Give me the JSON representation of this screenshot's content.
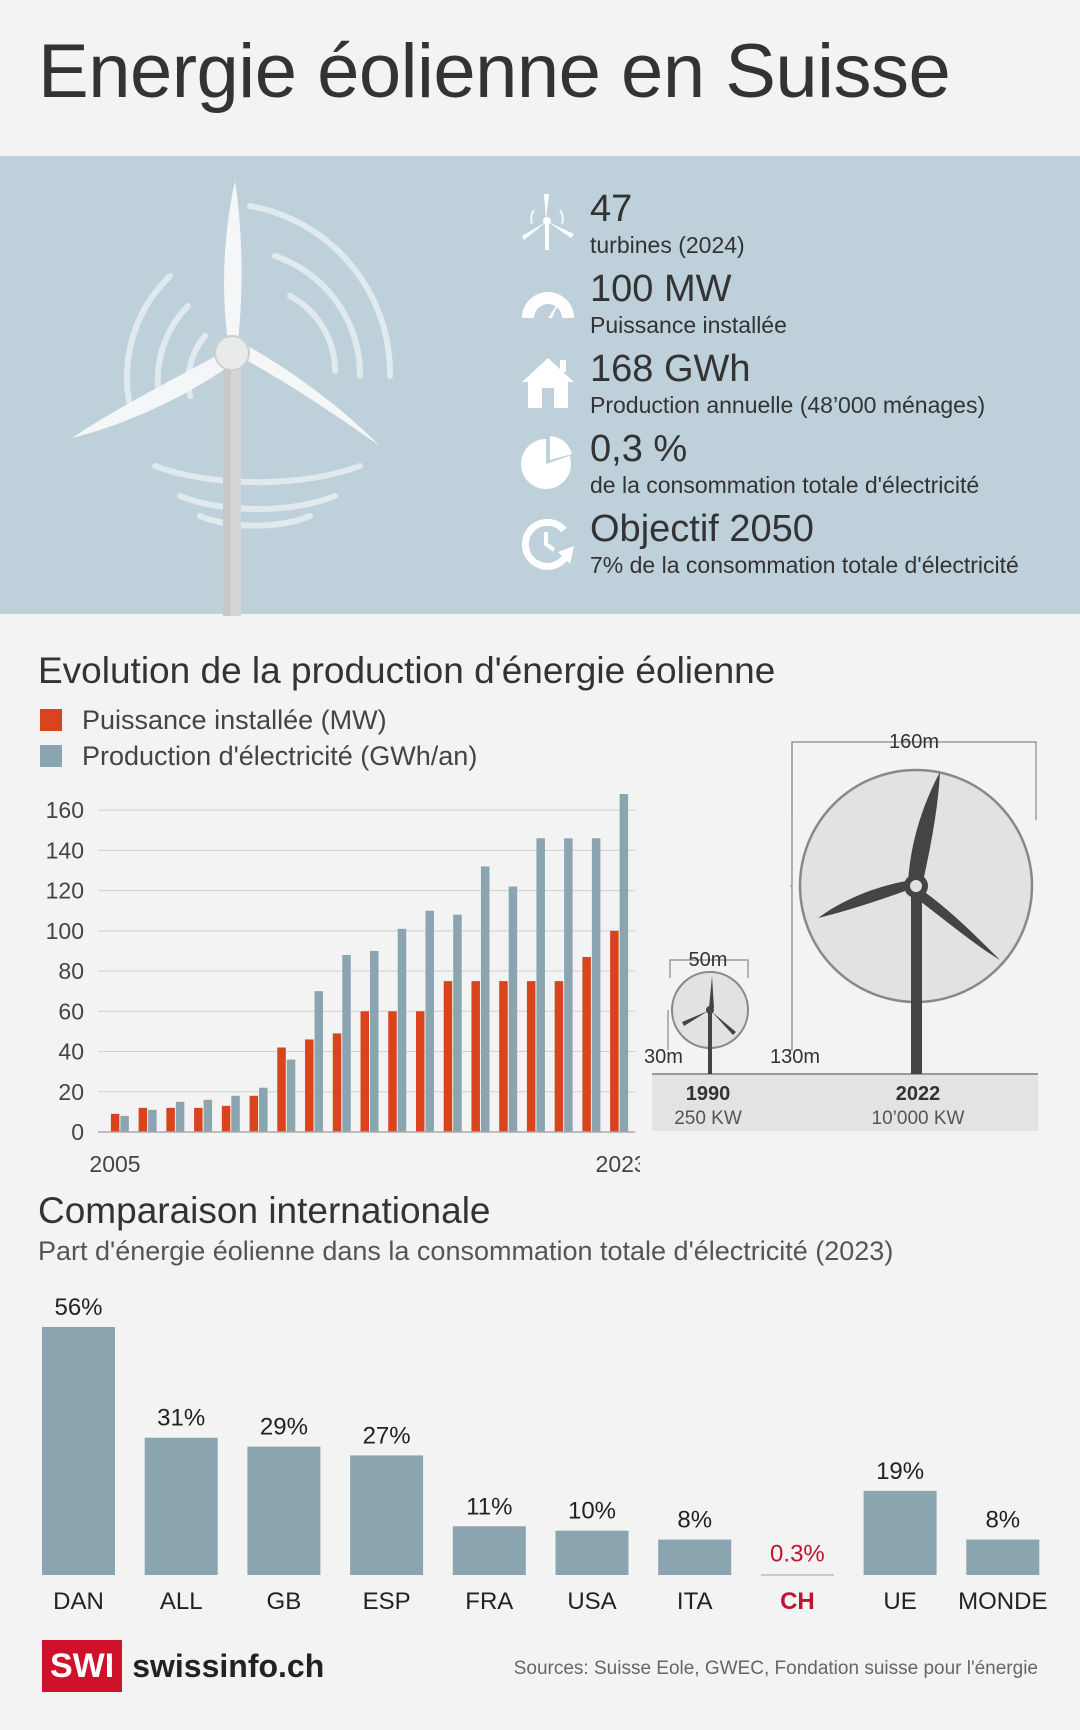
{
  "title": "Energie éolienne en Suisse",
  "stats": [
    {
      "icon": "wind-turbine-icon",
      "value": "47",
      "label": "turbines (2024)"
    },
    {
      "icon": "gauge-icon",
      "value": "100 MW",
      "label": "Puissance installée"
    },
    {
      "icon": "house-icon",
      "value": "168 GWh",
      "label": "Production annuelle (48’000 ménages)"
    },
    {
      "icon": "pie-icon",
      "value": "0,3 %",
      "label": "de la consommation totale d'électricité"
    },
    {
      "icon": "target-cycle-icon",
      "value": "Objectif 2050",
      "label": "7% de la consommation totale d'électricité"
    }
  ],
  "evolution": {
    "title": "Evolution de la production d'énergie éolienne",
    "legend": [
      {
        "label": "Puissance installée (MW)",
        "color": "#d9441c"
      },
      {
        "label": "Production d'électricité (GWh/an)",
        "color": "#8aa4b0"
      }
    ]
  },
  "chart_data": [
    {
      "type": "bar",
      "x": [
        2005,
        2006,
        2007,
        2008,
        2009,
        2010,
        2011,
        2012,
        2013,
        2014,
        2015,
        2016,
        2017,
        2018,
        2019,
        2020,
        2021,
        2022,
        2023
      ],
      "x_tick_labels": [
        "2005",
        "2023"
      ],
      "series": [
        {
          "name": "Puissance installée (MW)",
          "color": "#d9441c",
          "values": [
            9,
            12,
            12,
            12,
            13,
            18,
            42,
            46,
            49,
            60,
            60,
            60,
            75,
            75,
            75,
            75,
            75,
            87,
            100
          ]
        },
        {
          "name": "Production d'électricité (GWh/an)",
          "color": "#8aa4b0",
          "values": [
            8,
            11,
            15,
            16,
            18,
            22,
            36,
            70,
            88,
            90,
            101,
            110,
            108,
            132,
            122,
            146,
            146,
            146,
            168
          ]
        }
      ],
      "yticks": [
        0,
        20,
        40,
        60,
        80,
        100,
        120,
        140,
        160
      ],
      "ylim": [
        0,
        170
      ],
      "grid": true,
      "legend": "top-left"
    },
    {
      "type": "bar",
      "title": "Comparaison internationale",
      "subtitle": "Part d'énergie éolienne dans la consommation totale d'électricité (2023)",
      "categories": [
        "DAN",
        "ALL",
        "GB",
        "ESP",
        "FRA",
        "USA",
        "ITA",
        "CH",
        "UE",
        "MONDE"
      ],
      "values": [
        56,
        31,
        29,
        27,
        11,
        10,
        8,
        0.3,
        19,
        8
      ],
      "value_labels": [
        "56%",
        "31%",
        "29%",
        "27%",
        "11%",
        "10%",
        "8%",
        "0.3%",
        "19%",
        "8%"
      ],
      "highlight": "CH",
      "bar_color": "#8aa4b0",
      "highlight_color": "#c0152f"
    }
  ],
  "turbine_sizes": {
    "small": {
      "year": "1990",
      "power": "250 KW",
      "diameter": "50m",
      "hub": "30m"
    },
    "large": {
      "year": "2022",
      "power": "10’000 KW",
      "diameter": "160m",
      "hub": "130m"
    }
  },
  "footer": {
    "logo_box": "SWI",
    "logo_text": "swissinfo.ch",
    "sources": "Sources: Suisse Eole, GWEC, Fondation suisse pour l'énergie"
  }
}
